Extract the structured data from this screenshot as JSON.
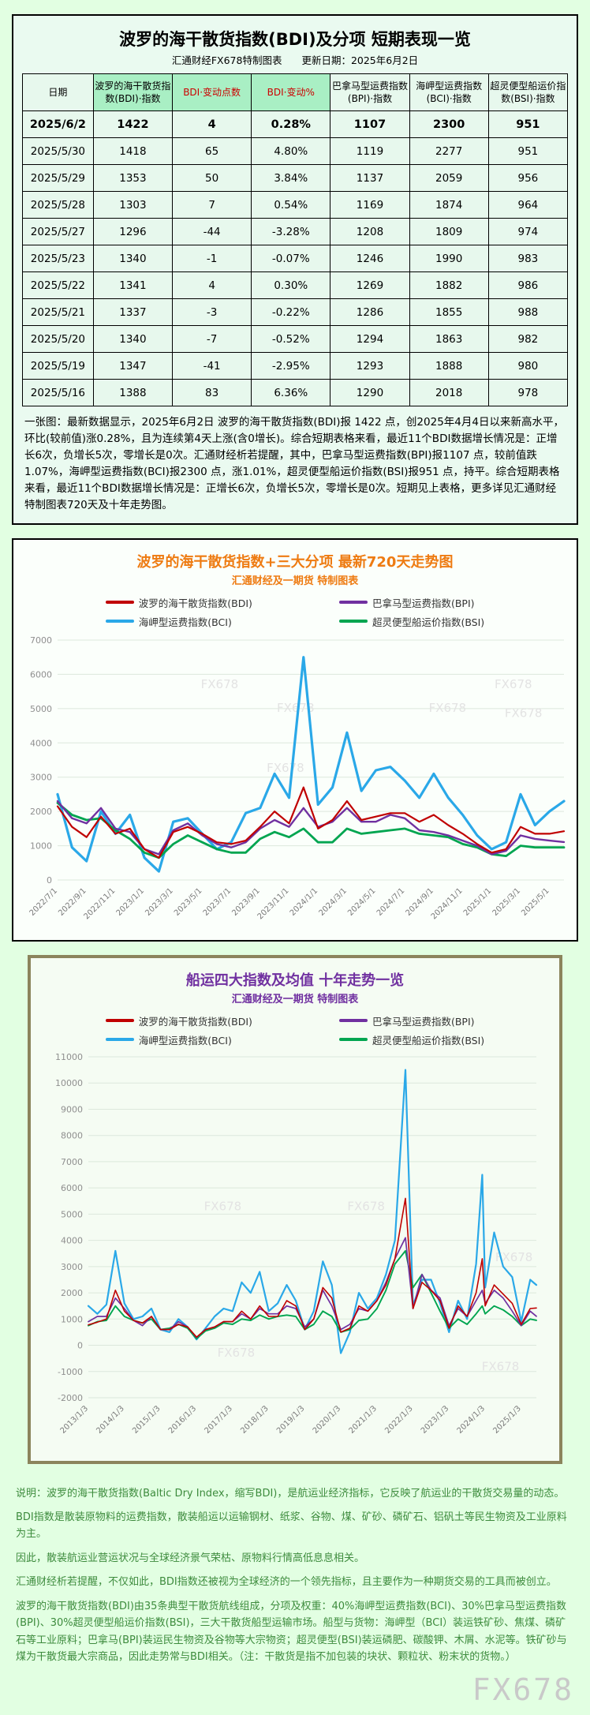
{
  "page": {
    "watermark": "FX678"
  },
  "table_section": {
    "title": "波罗的海干散货指数(BDI)及分项 短期表现一览",
    "subtitle": "汇通财经FX678特制图表　　更新日期：2025年6月2日",
    "columns": [
      {
        "label": "日期"
      },
      {
        "label": "波罗的海干散货指数(BDI)·指数",
        "mint": true
      },
      {
        "label": "BDI·变动点数",
        "mint": true,
        "red": true
      },
      {
        "label": "BDI·变动%",
        "mint": true,
        "red": true
      },
      {
        "label": "巴拿马型运费指数(BPI)·指数"
      },
      {
        "label": "海岬型运费指数(BCI)·指数"
      },
      {
        "label": "超灵便型船运价指数(BSI)·指数"
      }
    ],
    "rows": [
      [
        "2025/6/2",
        "1422",
        "4",
        "0.28%",
        "1107",
        "2300",
        "951"
      ],
      [
        "2025/5/30",
        "1418",
        "65",
        "4.80%",
        "1119",
        "2277",
        "951"
      ],
      [
        "2025/5/29",
        "1353",
        "50",
        "3.84%",
        "1137",
        "2059",
        "956"
      ],
      [
        "2025/5/28",
        "1303",
        "7",
        "0.54%",
        "1169",
        "1874",
        "964"
      ],
      [
        "2025/5/27",
        "1296",
        "-44",
        "-3.28%",
        "1208",
        "1809",
        "974"
      ],
      [
        "2025/5/23",
        "1340",
        "-1",
        "-0.07%",
        "1246",
        "1990",
        "983"
      ],
      [
        "2025/5/22",
        "1341",
        "4",
        "0.30%",
        "1269",
        "1882",
        "986"
      ],
      [
        "2025/5/21",
        "1337",
        "-3",
        "-0.22%",
        "1286",
        "1855",
        "988"
      ],
      [
        "2025/5/20",
        "1340",
        "-7",
        "-0.52%",
        "1294",
        "1863",
        "982"
      ],
      [
        "2025/5/19",
        "1347",
        "-41",
        "-2.95%",
        "1293",
        "1888",
        "980"
      ],
      [
        "2025/5/16",
        "1388",
        "83",
        "6.36%",
        "1290",
        "2018",
        "978"
      ]
    ],
    "note": "一张图：最新数据显示，2025年6月2日 波罗的海干散货指数(BDI)报 1422 点，创2025年4月4日以来新高水平，环比(较前值)涨0.28%，且为连续第4天上涨(含0增长)。综合短期表格来看，最近11个BDI数据增长情况是：正增长6次，负增长5次，零增长是0次。汇通财经析若提醒，其中，巴拿马型运费指数(BPI)报1107 点，较前值跌1.07%，海岬型运费指数(BCI)报2300 点，涨1.01%，超灵便型船运价指数(BSI)报951 点，持平。综合短期表格来看，最近11个BDI数据增长情况是：正增长6次，负增长5次，零增长是0次。短期见上表格，更多详见汇通财经特制图表720天及十年走势图。"
  },
  "footer": {
    "lines": [
      "说明：波罗的海干散货指数(Baltic Dry Index，缩写BDI)，是航运业经济指标，它反映了航运业的干散货交易量的动态。",
      "BDI指数是散装原物料的运费指数，散装船运以运输钢材、纸浆、谷物、煤、矿砂、磷矿石、铝矾土等民生物资及工业原料为主。",
      "因此，散装航运业营运状况与全球经济景气荣枯、原物料行情高低息息相关。",
      "汇通财经析若提醒，不仅如此，BDI指数还被视为全球经济的一个领先指标，且主要作为一种期货交易的工具而被创立。",
      "波罗的海干散货指数(BDI)由35条典型干散货航线组成，分项及权重：40%海岬型运费指数(BCI)、30%巴拿马型运费指数(BPI)、30%超灵便型船运价指数(BSI)，三大干散货船型运输市场。船型与货物：海岬型（BCI）装运铁矿砂、焦煤、磷矿石等工业原料；巴拿马(BPI)装运民生物资及谷物等大宗物资；超灵便型(BSI)装运磷肥、碳酸钾、木屑、水泥等。铁矿砂与煤为干散货最大宗商品，因此走势常与BDI相关。（注：干散货是指不加包装的块状、颗粒状、粉末状的货物。）"
    ]
  },
  "chart_data": [
    {
      "type": "line",
      "title": "波罗的海干散货指数+三大分项  最新720天走势图",
      "subtitle": "汇通财经及一期货  特制图表",
      "xlabel": "",
      "ylabel": "",
      "ylim": [
        0,
        7000
      ],
      "yticks": [
        0,
        1000,
        2000,
        3000,
        4000,
        5000,
        6000,
        7000
      ],
      "grid": true,
      "legend_position": "top",
      "watermark": "FX678",
      "x": [
        0,
        1,
        2,
        3,
        4,
        5,
        6,
        7,
        8,
        9,
        10,
        11,
        12,
        13,
        14,
        15,
        16,
        17,
        18,
        19,
        20,
        21,
        22,
        23,
        24,
        25,
        26,
        27,
        28,
        29,
        30,
        31,
        32,
        33,
        34,
        35
      ],
      "xticks": [
        0,
        2,
        4,
        6,
        8,
        10,
        12,
        14,
        16,
        18,
        20,
        22,
        24,
        26,
        28,
        30,
        32,
        34
      ],
      "xtick_labels": [
        "2022/7/1",
        "2022/9/1",
        "2022/11/1",
        "2023/1/1",
        "2023/3/1",
        "2023/5/1",
        "2023/7/1",
        "2023/9/1",
        "2023/11/1",
        "2024/1/1",
        "2024/3/1",
        "2024/5/1",
        "2024/7/1",
        "2024/9/1",
        "2024/11/1",
        "2025/1/1",
        "2025/3/1",
        "2025/5/1"
      ],
      "series": [
        {
          "name": "波罗的海干散货指数(BDI)",
          "color": "#c00000",
          "values": [
            2150,
            1550,
            1250,
            1850,
            1350,
            1500,
            900,
            650,
            1400,
            1550,
            1350,
            1100,
            1050,
            1150,
            1550,
            2000,
            1650,
            2700,
            1500,
            1750,
            2300,
            1750,
            1850,
            1950,
            1950,
            1700,
            1900,
            1600,
            1350,
            1050,
            800,
            900,
            1550,
            1350,
            1350,
            1422
          ]
        },
        {
          "name": "巴拿马型运费指数(BPI)",
          "color": "#7030a0",
          "values": [
            2300,
            1800,
            1650,
            2100,
            1500,
            1400,
            900,
            750,
            1450,
            1650,
            1300,
            1050,
            950,
            1100,
            1500,
            1750,
            1550,
            2100,
            1550,
            1700,
            2100,
            1700,
            1700,
            1900,
            1800,
            1450,
            1400,
            1300,
            1150,
            1000,
            750,
            850,
            1300,
            1200,
            1150,
            1107
          ]
        },
        {
          "name": "海岬型运费指数(BCI)",
          "color": "#2aa8e8",
          "values": [
            2500,
            950,
            550,
            2000,
            1350,
            1900,
            650,
            250,
            1700,
            1800,
            1350,
            900,
            1100,
            1950,
            2100,
            3100,
            2400,
            6500,
            2200,
            2700,
            4300,
            2600,
            3200,
            3300,
            2900,
            2400,
            3100,
            2400,
            1900,
            1300,
            900,
            1100,
            2500,
            1600,
            2000,
            2300
          ]
        },
        {
          "name": "超灵便型船运价指数(BSI)",
          "color": "#00a550",
          "values": [
            2250,
            1900,
            1750,
            1800,
            1450,
            1200,
            800,
            650,
            1050,
            1300,
            1100,
            900,
            800,
            800,
            1200,
            1400,
            1250,
            1500,
            1100,
            1100,
            1500,
            1350,
            1400,
            1450,
            1500,
            1350,
            1300,
            1250,
            1050,
            950,
            750,
            700,
            1000,
            950,
            950,
            951
          ]
        }
      ]
    },
    {
      "type": "line",
      "title": "船运四大指数及均值 十年走势一览",
      "subtitle": "汇通财经及一期货 特制图表",
      "xlabel": "",
      "ylabel": "",
      "ylim": [
        -2000,
        11000
      ],
      "yticks": [
        -2000,
        -1000,
        0,
        1000,
        2000,
        3000,
        4000,
        5000,
        6000,
        7000,
        8000,
        9000,
        10000,
        11000
      ],
      "grid": true,
      "legend_position": "top",
      "watermark": "FX678",
      "x": [
        2013.0,
        2013.25,
        2013.5,
        2013.75,
        2014.0,
        2014.25,
        2014.5,
        2014.75,
        2015.0,
        2015.25,
        2015.5,
        2015.75,
        2016.0,
        2016.25,
        2016.5,
        2016.75,
        2017.0,
        2017.25,
        2017.5,
        2017.75,
        2018.0,
        2018.25,
        2018.5,
        2018.75,
        2019.0,
        2019.25,
        2019.5,
        2019.75,
        2020.0,
        2020.25,
        2020.5,
        2020.75,
        2021.0,
        2021.25,
        2021.5,
        2021.79,
        2022.0,
        2022.25,
        2022.5,
        2022.75,
        2023.0,
        2023.25,
        2023.5,
        2023.75,
        2023.92,
        2024.0,
        2024.25,
        2024.5,
        2024.75,
        2025.0,
        2025.25,
        2025.42
      ],
      "xticks": [
        2013,
        2014,
        2015,
        2016,
        2017,
        2018,
        2019,
        2020,
        2021,
        2022,
        2023,
        2024,
        2025
      ],
      "xtick_labels": [
        "2013/1/3",
        "2014/1/3",
        "2015/1/3",
        "2016/1/3",
        "2017/1/3",
        "2018/1/3",
        "2019/1/3",
        "2020/1/3",
        "2021/1/3",
        "2022/1/3",
        "2023/1/3",
        "2024/1/3",
        "2025/1/3"
      ],
      "series": [
        {
          "name": "波罗的海干散货指数(BDI)",
          "color": "#c00000",
          "values": [
            780,
            880,
            1000,
            2100,
            1300,
            950,
            850,
            1100,
            600,
            600,
            800,
            700,
            310,
            600,
            700,
            900,
            900,
            1300,
            1000,
            1500,
            1100,
            1100,
            1700,
            1500,
            600,
            1000,
            2200,
            1800,
            500,
            650,
            1500,
            1300,
            1700,
            2300,
            3300,
            5600,
            1400,
            2400,
            2100,
            1700,
            650,
            1500,
            1100,
            2000,
            3300,
            1500,
            2300,
            1950,
            1600,
            800,
            1400,
            1422
          ]
        },
        {
          "name": "巴拿马型运费指数(BPI)",
          "color": "#7030a0",
          "values": [
            900,
            1100,
            1100,
            1800,
            1400,
            950,
            750,
            1100,
            600,
            600,
            900,
            700,
            300,
            600,
            700,
            900,
            900,
            1200,
            1000,
            1400,
            1200,
            1200,
            1500,
            1400,
            700,
            1000,
            2100,
            1500,
            600,
            800,
            1400,
            1300,
            1700,
            2400,
            3300,
            4100,
            1400,
            2700,
            2100,
            1800,
            750,
            1400,
            1100,
            1700,
            2100,
            1600,
            2100,
            1800,
            1300,
            750,
            1300,
            1107
          ]
        },
        {
          "name": "海岬型运费指数(BCI)",
          "color": "#2aa8e8",
          "values": [
            1500,
            1200,
            1550,
            3600,
            1600,
            1000,
            1100,
            1400,
            600,
            500,
            1000,
            700,
            220,
            650,
            1100,
            1400,
            1300,
            2400,
            2000,
            2800,
            1300,
            1600,
            2300,
            1700,
            600,
            1300,
            3200,
            2300,
            -300,
            500,
            2000,
            1400,
            1800,
            2700,
            4000,
            10500,
            1500,
            2500,
            2500,
            1600,
            500,
            1700,
            1000,
            3100,
            6500,
            2200,
            4300,
            3000,
            2600,
            900,
            2500,
            2300
          ]
        },
        {
          "name": "超灵便型船运价指数(BSI)",
          "color": "#00a550",
          "values": [
            750,
            900,
            950,
            1500,
            1100,
            950,
            850,
            1000,
            600,
            650,
            800,
            650,
            250,
            550,
            650,
            850,
            800,
            1000,
            950,
            1150,
            1000,
            1100,
            1150,
            1100,
            600,
            800,
            1300,
            1100,
            500,
            600,
            950,
            1000,
            1400,
            2100,
            3100,
            3600,
            2200,
            2700,
            2000,
            1300,
            650,
            1000,
            800,
            1200,
            1500,
            1200,
            1500,
            1350,
            1100,
            750,
            1000,
            951
          ]
        }
      ]
    }
  ]
}
